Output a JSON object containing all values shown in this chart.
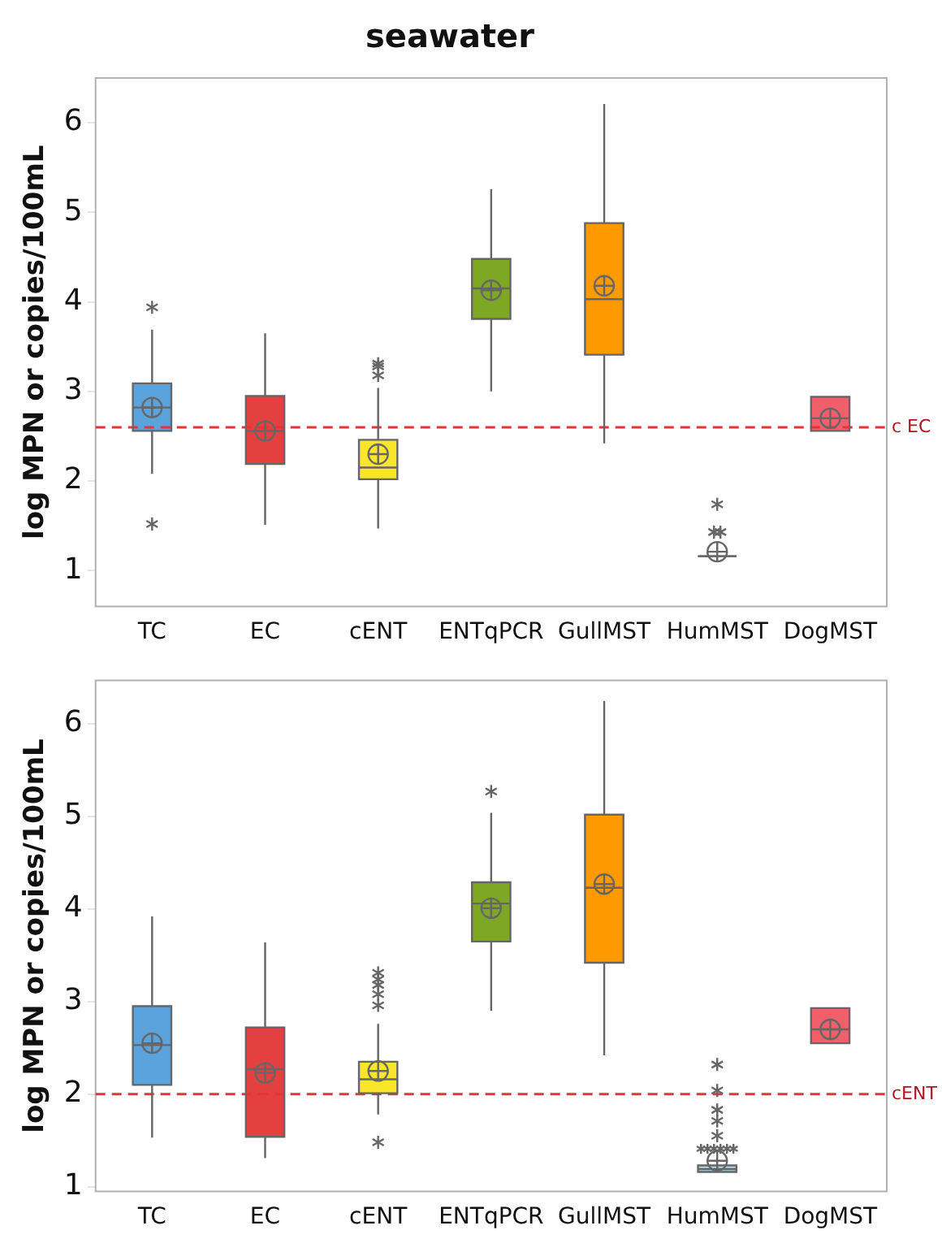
{
  "chart_data": [
    {
      "type": "box",
      "title": "seawater",
      "ylabel": "log MPN or copies/100mL",
      "categories": [
        "TC",
        "EC",
        "cENT",
        "ENTqPCR",
        "GullMST",
        "HumMST",
        "DogMST"
      ],
      "colors": [
        "#5ba3dc",
        "#e54040",
        "#f9e52a",
        "#7ea823",
        "#ff9900",
        "#666666",
        "#f0606a"
      ],
      "boxes": [
        {
          "low": 2.08,
          "q1": 2.56,
          "median": 2.82,
          "q3": 3.09,
          "high": 3.69,
          "mean": 2.82,
          "outliers": [
            3.94,
            1.52
          ]
        },
        {
          "low": 1.51,
          "q1": 2.19,
          "median": 2.56,
          "q3": 2.95,
          "high": 3.65,
          "mean": 2.56
        },
        {
          "low": 1.47,
          "q1": 2.02,
          "median": 2.15,
          "q3": 2.46,
          "high": 3.04,
          "mean": 2.3,
          "outliers": [
            3.31,
            3.28,
            3.18
          ]
        },
        {
          "low": 3.0,
          "q1": 3.81,
          "median": 4.15,
          "q3": 4.48,
          "high": 5.26,
          "mean": 4.13
        },
        {
          "low": 2.42,
          "q1": 3.41,
          "median": 4.03,
          "q3": 4.88,
          "high": 6.21,
          "mean": 4.18
        },
        {
          "low": 1.16,
          "q1": 1.16,
          "median": 1.16,
          "q3": 1.16,
          "high": 1.16,
          "mean": 1.21,
          "outliers": [
            1.74,
            1.43,
            1.43
          ]
        },
        {
          "low": 2.56,
          "q1": 2.56,
          "median": 2.7,
          "q3": 2.94,
          "high": 2.94,
          "mean": 2.7
        }
      ],
      "ylim": [
        0.6,
        6.5
      ],
      "yticks": [
        1,
        2,
        3,
        4,
        5,
        6
      ],
      "ref_lines": [
        {
          "axis": "y",
          "value": 2.6,
          "label": "c EC",
          "color": "#e8323a",
          "line_style": "dashed"
        }
      ],
      "grid": false,
      "legend": false
    },
    {
      "type": "box",
      "ylabel": "log MPN or copies/100mL",
      "categories": [
        "TC",
        "EC",
        "cENT",
        "ENTqPCR",
        "GullMST",
        "HumMST",
        "DogMST"
      ],
      "colors": [
        "#5ba3dc",
        "#e54040",
        "#f9e52a",
        "#7ea823",
        "#ff9900",
        "#add8e6",
        "#f0606a"
      ],
      "boxes": [
        {
          "low": 1.53,
          "q1": 2.1,
          "median": 2.53,
          "q3": 2.95,
          "high": 3.92,
          "mean": 2.55
        },
        {
          "low": 1.31,
          "q1": 1.54,
          "median": 2.27,
          "q3": 2.72,
          "high": 3.64,
          "mean": 2.23
        },
        {
          "low": 1.78,
          "q1": 2.01,
          "median": 2.16,
          "q3": 2.35,
          "high": 2.76,
          "mean": 2.25,
          "outliers": [
            3.31,
            3.24,
            3.18,
            3.08,
            2.96,
            1.48
          ]
        },
        {
          "low": 2.9,
          "q1": 3.65,
          "median": 4.06,
          "q3": 4.29,
          "high": 5.04,
          "mean": 4.01,
          "outliers": [
            5.27
          ]
        },
        {
          "low": 2.42,
          "q1": 3.42,
          "median": 4.23,
          "q3": 5.02,
          "high": 6.25,
          "mean": 4.27
        },
        {
          "low": 1.16,
          "q1": 1.16,
          "median": 1.19,
          "q3": 1.23,
          "high": 1.23,
          "mean": 1.28,
          "outliers": [
            2.32,
            2.04,
            1.83,
            1.71,
            1.55,
            1.41,
            1.41,
            1.41,
            1.41,
            1.41,
            1.41
          ]
        },
        {
          "low": 2.55,
          "q1": 2.55,
          "median": 2.7,
          "q3": 2.93,
          "high": 2.93,
          "mean": 2.7
        }
      ],
      "ylim": [
        0.95,
        6.47
      ],
      "yticks": [
        1,
        2,
        3,
        4,
        5,
        6
      ],
      "ref_lines": [
        {
          "axis": "y",
          "value": 2.0,
          "label": "cENT",
          "color": "#e8323a",
          "line_style": "dashed"
        }
      ],
      "grid": false,
      "legend": false
    }
  ]
}
